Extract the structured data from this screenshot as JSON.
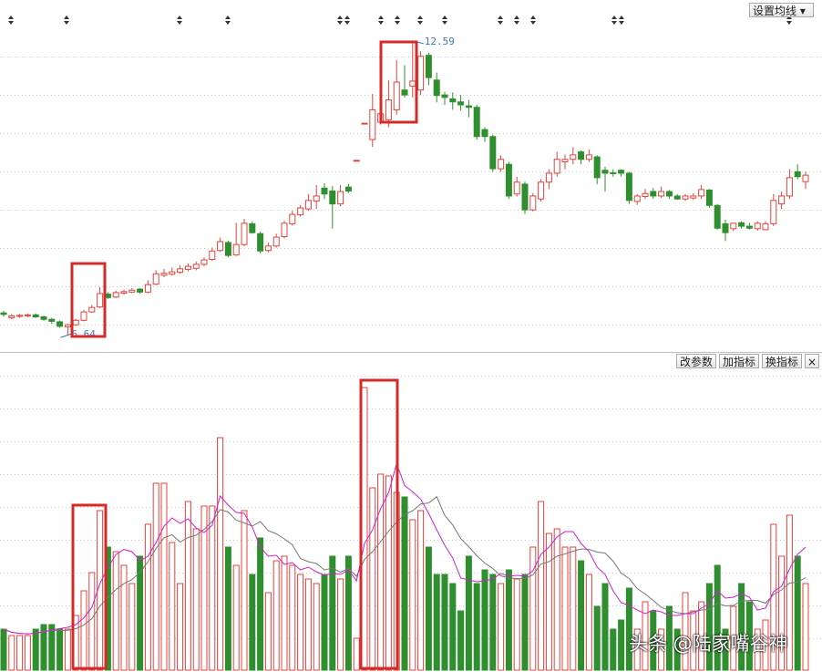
{
  "chart_data": {
    "type": "candlestick",
    "high_label": 12.59,
    "low_label": 6.64,
    "ylim": [
      6.33,
      13.38
    ],
    "candles": {
      "open": [
        7.1,
        7.0,
        7.03,
        7.04,
        7.06,
        7.02,
        6.97,
        6.92,
        6.82,
        6.86,
        6.95,
        7.12,
        7.22,
        7.48,
        7.42,
        7.5,
        7.52,
        7.58,
        7.52,
        7.68,
        7.86,
        7.88,
        7.92,
        7.98,
        8.0,
        8.08,
        8.18,
        8.36,
        8.52,
        8.27,
        8.48,
        8.9,
        8.7,
        8.36,
        8.45,
        8.64,
        8.9,
        9.08,
        9.2,
        9.36,
        9.62,
        9.56,
        9.3,
        9.64,
        10.18,
        10.93,
        10.6,
        10.95,
        11.0,
        11.2,
        11.6,
        11.68,
        11.6,
        12.3,
        11.8,
        11.5,
        11.42,
        11.36,
        11.28,
        11.25,
        10.8,
        10.66,
        10.01,
        10.1,
        9.5,
        9.7,
        9.18,
        9.4,
        9.74,
        9.92,
        10.15,
        10.2,
        10.35,
        10.2,
        10.25,
        9.98,
        9.93,
        9.98,
        9.92,
        9.35,
        9.45,
        9.55,
        9.46,
        9.55,
        9.46,
        9.4,
        9.42,
        9.46,
        9.58,
        9.27,
        8.9,
        8.8,
        8.92,
        8.85,
        8.8,
        8.78,
        8.9,
        9.3,
        9.46,
        9.95,
        9.75
      ],
      "high": [
        7.14,
        7.08,
        7.08,
        7.09,
        7.09,
        7.05,
        7.0,
        6.95,
        6.88,
        6.98,
        7.16,
        7.26,
        7.62,
        7.52,
        7.55,
        7.57,
        7.6,
        7.6,
        7.76,
        7.96,
        7.99,
        8.02,
        8.06,
        8.1,
        8.14,
        8.22,
        8.42,
        8.62,
        8.56,
        8.92,
        9.0,
        8.95,
        8.74,
        8.52,
        8.7,
        8.96,
        9.16,
        9.28,
        9.5,
        9.68,
        9.72,
        9.66,
        9.68,
        9.7,
        10.18,
        10.93,
        11.52,
        11.6,
        11.8,
        12.2,
        12.1,
        12.59,
        12.38,
        12.35,
        11.95,
        11.56,
        11.55,
        11.5,
        11.4,
        11.3,
        10.85,
        10.7,
        10.28,
        10.15,
        9.85,
        9.75,
        9.52,
        9.8,
        10.0,
        10.35,
        10.3,
        10.45,
        10.38,
        10.4,
        10.28,
        10.05,
        10.0,
        10.0,
        9.95,
        9.5,
        9.6,
        9.62,
        9.65,
        9.58,
        9.5,
        9.5,
        9.52,
        9.68,
        9.6,
        9.3,
        8.98,
        8.92,
        8.95,
        8.92,
        8.95,
        8.95,
        9.5,
        9.55,
        10.0,
        10.1,
        9.95
      ],
      "low": [
        7.02,
        6.97,
        7.0,
        7.01,
        7.0,
        6.94,
        6.88,
        6.8,
        6.64,
        6.84,
        6.93,
        7.1,
        7.2,
        7.38,
        7.4,
        7.47,
        7.5,
        7.49,
        7.5,
        7.66,
        7.82,
        7.85,
        7.89,
        7.94,
        7.96,
        8.04,
        8.15,
        8.33,
        8.22,
        8.25,
        8.45,
        8.7,
        8.3,
        8.32,
        8.42,
        8.6,
        8.86,
        9.04,
        9.16,
        9.2,
        9.4,
        8.8,
        9.25,
        9.52,
        10.18,
        10.93,
        10.45,
        10.9,
        10.85,
        11.1,
        11.45,
        11.45,
        11.5,
        11.7,
        11.35,
        11.3,
        11.2,
        11.18,
        11.05,
        10.6,
        10.55,
        9.95,
        9.95,
        9.4,
        9.45,
        9.1,
        9.15,
        9.35,
        9.6,
        9.85,
        10.0,
        10.1,
        10.1,
        10.15,
        9.7,
        9.55,
        9.85,
        9.85,
        9.3,
        9.28,
        9.4,
        9.4,
        9.42,
        9.4,
        9.38,
        9.36,
        9.38,
        9.4,
        9.22,
        8.78,
        8.55,
        8.75,
        8.8,
        8.78,
        8.76,
        8.78,
        8.85,
        9.2,
        9.4,
        9.8,
        9.6
      ],
      "close": [
        7.07,
        7.04,
        7.05,
        7.06,
        7.02,
        6.97,
        6.93,
        6.83,
        6.86,
        6.95,
        7.12,
        7.21,
        7.49,
        7.41,
        7.51,
        7.53,
        7.56,
        7.52,
        7.67,
        7.89,
        7.9,
        7.93,
        7.99,
        8.04,
        8.08,
        8.17,
        8.35,
        8.54,
        8.26,
        8.48,
        8.91,
        8.72,
        8.35,
        8.45,
        8.63,
        8.91,
        9.09,
        9.22,
        9.37,
        9.46,
        9.5,
        9.3,
        9.55,
        9.56,
        10.18,
        10.93,
        11.2,
        11.12,
        11.4,
        11.76,
        11.5,
        11.78,
        12.28,
        11.85,
        11.49,
        11.45,
        11.36,
        11.3,
        11.25,
        10.66,
        10.66,
        10.01,
        10.2,
        9.46,
        9.74,
        9.18,
        9.46,
        9.74,
        9.92,
        10.2,
        10.2,
        10.29,
        10.2,
        10.29,
        9.83,
        9.92,
        9.92,
        9.92,
        9.37,
        9.46,
        9.51,
        9.46,
        9.55,
        9.46,
        9.4,
        9.46,
        9.46,
        9.59,
        9.27,
        8.81,
        8.72,
        8.91,
        8.85,
        8.81,
        8.91,
        8.9,
        9.37,
        9.46,
        9.83,
        9.85,
        9.88
      ]
    },
    "volume": [
      45,
      38,
      38,
      38,
      45,
      50,
      50,
      45,
      45,
      60,
      87,
      107,
      175,
      135,
      130,
      115,
      95,
      125,
      160,
      205,
      205,
      140,
      95,
      185,
      155,
      180,
      180,
      255,
      135,
      115,
      175,
      105,
      145,
      85,
      120,
      125,
      115,
      105,
      100,
      95,
      105,
      125,
      100,
      125,
      35,
      310,
      200,
      215,
      213,
      195,
      190,
      165,
      175,
      135,
      105,
      105,
      95,
      65,
      125,
      95,
      110,
      105,
      95,
      110,
      100,
      105,
      135,
      185,
      150,
      155,
      135,
      135,
      120,
      105,
      70,
      95,
      45,
      55,
      90,
      45,
      75,
      65,
      45,
      70,
      45,
      85,
      65,
      75,
      95,
      115,
      45,
      70,
      95,
      75,
      45,
      55,
      160,
      125,
      170,
      125,
      95
    ],
    "volume_ylim": [
      0,
      345
    ],
    "up_color": "#e8403a",
    "down_color": "#2f8f2f"
  },
  "toolbar": {
    "ma_button": "设置均线",
    "indicator_buttons": [
      "改参数",
      "加指标",
      "换指标"
    ],
    "close_button": "×"
  },
  "watermark": "头条 @陆家嘴谷神"
}
